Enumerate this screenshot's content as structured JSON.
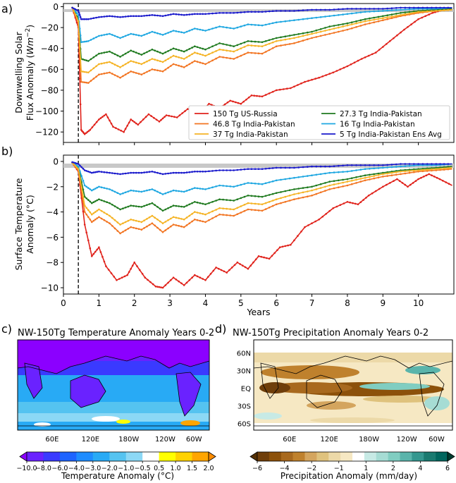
{
  "chart_data": [
    {
      "panel_label": "a)",
      "type": "line",
      "ylabel_line1": "Downwelling Solar",
      "ylabel_line2_prefix": "Flux Anomaly (",
      "ylabel_line2_unit": "Wm",
      "ylabel_line2_exp": "−2",
      "ylabel_line2_suffix": ")",
      "xlim": [
        0,
        11
      ],
      "ylim": [
        -130,
        3
      ],
      "yticks": [
        0,
        -20,
        -40,
        -60,
        -80,
        -100,
        -120
      ],
      "ytick_labels": [
        "0",
        "−20",
        "−40",
        "−60",
        "−80",
        "−100",
        "−120"
      ],
      "vline_x": 0.42,
      "legend_loc": "lower-right",
      "series": [
        {
          "name": "150 Tg US-Russia",
          "color": "#e0221b",
          "x": [
            0.25,
            0.42,
            0.5,
            0.6,
            0.75,
            1.0,
            1.2,
            1.4,
            1.7,
            1.9,
            2.1,
            2.4,
            2.7,
            2.9,
            3.2,
            3.5,
            3.8,
            4.1,
            4.4,
            4.7,
            5.0,
            5.3,
            5.6,
            6.0,
            6.4,
            6.8,
            7.2,
            7.6,
            8.0,
            8.4,
            8.8,
            9.2,
            9.6,
            10.0,
            10.4,
            10.7,
            10.95
          ],
          "y": [
            -1,
            -20,
            -118,
            -122,
            -118,
            -108,
            -103,
            -115,
            -120,
            -108,
            -113,
            -103,
            -110,
            -104,
            -106,
            -98,
            -103,
            -93,
            -97,
            -90,
            -93,
            -85,
            -86,
            -80,
            -78,
            -72,
            -68,
            -63,
            -57,
            -50,
            -44,
            -33,
            -22,
            -12,
            -6,
            -3,
            -2
          ]
        },
        {
          "name": "27.3 Tg India-Pakistan",
          "color": "#1f7a1f",
          "x": [
            0.25,
            0.42,
            0.5,
            0.7,
            1.0,
            1.3,
            1.6,
            1.9,
            2.2,
            2.5,
            2.8,
            3.1,
            3.4,
            3.7,
            4.0,
            4.4,
            4.8,
            5.2,
            5.6,
            6.0,
            6.5,
            7.0,
            7.5,
            8.0,
            8.5,
            9.0,
            9.5,
            10.0,
            10.5,
            10.95
          ],
          "y": [
            -1,
            -12,
            -50,
            -52,
            -45,
            -43,
            -48,
            -42,
            -46,
            -41,
            -45,
            -40,
            -43,
            -38,
            -41,
            -35,
            -38,
            -33,
            -34,
            -30,
            -27,
            -24,
            -19,
            -16,
            -12,
            -9,
            -6,
            -4,
            -3,
            -2
          ]
        },
        {
          "name": "46.8 Tg India-Pakistan",
          "color": "#f27421",
          "x": [
            0.25,
            0.42,
            0.5,
            0.7,
            1.0,
            1.3,
            1.6,
            1.9,
            2.2,
            2.5,
            2.8,
            3.1,
            3.4,
            3.7,
            4.0,
            4.4,
            4.8,
            5.2,
            5.6,
            6.0,
            6.5,
            7.0,
            7.5,
            8.0,
            8.5,
            9.0,
            9.5,
            10.0,
            10.5,
            10.95
          ],
          "y": [
            -1,
            -15,
            -72,
            -73,
            -65,
            -63,
            -68,
            -62,
            -65,
            -60,
            -62,
            -55,
            -58,
            -52,
            -55,
            -48,
            -50,
            -44,
            -45,
            -38,
            -35,
            -30,
            -26,
            -22,
            -17,
            -13,
            -9,
            -6,
            -4,
            -3
          ]
        },
        {
          "name": "16 Tg India-Pakistan",
          "color": "#1ea7e1",
          "x": [
            0.25,
            0.42,
            0.5,
            0.7,
            1.0,
            1.3,
            1.6,
            1.9,
            2.2,
            2.5,
            2.8,
            3.1,
            3.4,
            3.7,
            4.0,
            4.4,
            4.8,
            5.2,
            5.6,
            6.0,
            6.5,
            7.0,
            7.5,
            8.0,
            8.5,
            9.0,
            9.5,
            10.0,
            10.5,
            10.95
          ],
          "y": [
            -1,
            -8,
            -34,
            -33,
            -28,
            -26,
            -30,
            -26,
            -28,
            -24,
            -27,
            -23,
            -25,
            -21,
            -23,
            -19,
            -21,
            -17,
            -18,
            -15,
            -13,
            -11,
            -9,
            -7,
            -5,
            -4,
            -3,
            -2,
            -2,
            -1
          ]
        },
        {
          "name": "37 Tg India-Pakistan",
          "color": "#f5b324",
          "x": [
            0.25,
            0.42,
            0.5,
            0.7,
            1.0,
            1.3,
            1.6,
            1.9,
            2.2,
            2.5,
            2.8,
            3.1,
            3.4,
            3.7,
            4.0,
            4.4,
            4.8,
            5.2,
            5.6,
            6.0,
            6.5,
            7.0,
            7.5,
            8.0,
            8.5,
            9.0,
            9.5,
            10.0,
            10.5,
            10.95
          ],
          "y": [
            -1,
            -14,
            -62,
            -63,
            -55,
            -53,
            -58,
            -52,
            -55,
            -50,
            -53,
            -47,
            -50,
            -44,
            -47,
            -41,
            -43,
            -37,
            -38,
            -33,
            -30,
            -26,
            -22,
            -18,
            -14,
            -11,
            -8,
            -5,
            -4,
            -3
          ]
        },
        {
          "name": "5 Tg India-Pakistan Ens Avg",
          "color": "#1a1acc",
          "x": [
            0.25,
            0.42,
            0.5,
            0.7,
            1.0,
            1.3,
            1.6,
            1.9,
            2.2,
            2.5,
            2.8,
            3.1,
            3.4,
            3.7,
            4.0,
            4.4,
            4.8,
            5.2,
            5.6,
            6.0,
            6.5,
            7.0,
            7.5,
            8.0,
            8.5,
            9.0,
            9.5,
            10.0,
            10.5,
            10.95
          ],
          "y": [
            -1,
            -4,
            -12,
            -12,
            -10,
            -9,
            -10,
            -9,
            -9,
            -8,
            -9,
            -7,
            -8,
            -7,
            -7,
            -6,
            -6,
            -5,
            -5,
            -4,
            -4,
            -3,
            -3,
            -2,
            -2,
            -2,
            -1,
            -1,
            -1,
            -1
          ]
        }
      ]
    },
    {
      "panel_label": "b)",
      "type": "line",
      "ylabel_line1": "Surface Temperature",
      "ylabel_line2": "Anomaly (°C)",
      "xlabel": "Years",
      "xlim": [
        0,
        11
      ],
      "ylim": [
        -10.5,
        0.5
      ],
      "xticks": [
        0,
        1,
        2,
        3,
        4,
        5,
        6,
        7,
        8,
        9,
        10
      ],
      "xtick_labels": [
        "0",
        "1",
        "2",
        "3",
        "4",
        "5",
        "6",
        "7",
        "8",
        "9",
        "10"
      ],
      "yticks": [
        0,
        -2,
        -4,
        -6,
        -8,
        -10
      ],
      "ytick_labels": [
        "0",
        "−2",
        "−4",
        "−6",
        "−8",
        "−10"
      ],
      "vline_x": 0.42,
      "series": [
        {
          "name": "150 Tg US-Russia",
          "color": "#e0221b",
          "x": [
            0.25,
            0.42,
            0.6,
            0.8,
            1.0,
            1.2,
            1.5,
            1.8,
            2.0,
            2.3,
            2.6,
            2.8,
            3.1,
            3.4,
            3.7,
            4.0,
            4.3,
            4.6,
            4.9,
            5.2,
            5.5,
            5.8,
            6.1,
            6.4,
            6.8,
            7.2,
            7.6,
            8.0,
            8.3,
            8.6,
            9.0,
            9.4,
            9.7,
            10.0,
            10.3,
            10.6,
            10.95
          ],
          "y": [
            -0.1,
            -0.8,
            -5.0,
            -7.5,
            -6.8,
            -8.3,
            -9.4,
            -9.0,
            -8.0,
            -9.2,
            -9.9,
            -10.0,
            -9.2,
            -9.8,
            -9.0,
            -9.4,
            -8.4,
            -8.8,
            -8.0,
            -8.5,
            -7.5,
            -7.7,
            -6.8,
            -6.6,
            -5.2,
            -4.6,
            -3.7,
            -3.2,
            -3.4,
            -2.7,
            -2.0,
            -1.4,
            -2.0,
            -1.4,
            -1.0,
            -1.4,
            -1.9
          ]
        },
        {
          "name": "27.3 Tg India-Pakistan",
          "color": "#1f7a1f",
          "x": [
            0.25,
            0.42,
            0.6,
            0.8,
            1.0,
            1.3,
            1.6,
            1.9,
            2.2,
            2.5,
            2.8,
            3.1,
            3.4,
            3.7,
            4.0,
            4.4,
            4.8,
            5.2,
            5.6,
            6.0,
            6.5,
            7.0,
            7.5,
            8.0,
            8.5,
            9.0,
            9.5,
            10.0,
            10.5,
            10.95
          ],
          "y": [
            -0.1,
            -0.5,
            -2.8,
            -3.3,
            -3.0,
            -3.3,
            -3.8,
            -3.5,
            -3.6,
            -3.3,
            -3.9,
            -3.5,
            -3.6,
            -3.2,
            -3.4,
            -3.0,
            -3.1,
            -2.7,
            -2.8,
            -2.5,
            -2.2,
            -2.0,
            -1.6,
            -1.4,
            -1.1,
            -0.9,
            -0.7,
            -0.6,
            -0.5,
            -0.4
          ]
        },
        {
          "name": "46.8 Tg India-Pakistan",
          "color": "#f27421",
          "x": [
            0.25,
            0.42,
            0.6,
            0.8,
            1.0,
            1.3,
            1.6,
            1.9,
            2.2,
            2.5,
            2.8,
            3.1,
            3.4,
            3.7,
            4.0,
            4.4,
            4.8,
            5.2,
            5.6,
            6.0,
            6.5,
            7.0,
            7.5,
            8.0,
            8.5,
            9.0,
            9.5,
            10.0,
            10.5,
            10.95
          ],
          "y": [
            -0.1,
            -0.7,
            -4.0,
            -4.8,
            -4.4,
            -4.9,
            -5.7,
            -5.2,
            -5.4,
            -4.9,
            -5.6,
            -5.0,
            -5.2,
            -4.6,
            -4.8,
            -4.2,
            -4.3,
            -3.8,
            -3.9,
            -3.4,
            -3.0,
            -2.7,
            -2.2,
            -1.9,
            -1.5,
            -1.2,
            -1.0,
            -0.8,
            -0.7,
            -0.6
          ]
        },
        {
          "name": "16 Tg India-Pakistan",
          "color": "#1ea7e1",
          "x": [
            0.25,
            0.42,
            0.6,
            0.8,
            1.0,
            1.3,
            1.6,
            1.9,
            2.2,
            2.5,
            2.8,
            3.1,
            3.4,
            3.7,
            4.0,
            4.4,
            4.8,
            5.2,
            5.6,
            6.0,
            6.5,
            7.0,
            7.5,
            8.0,
            8.5,
            9.0,
            9.5,
            10.0,
            10.5,
            10.95
          ],
          "y": [
            -0.1,
            -0.4,
            -1.9,
            -2.3,
            -2.0,
            -2.2,
            -2.6,
            -2.3,
            -2.4,
            -2.2,
            -2.6,
            -2.3,
            -2.4,
            -2.1,
            -2.2,
            -1.9,
            -2.0,
            -1.7,
            -1.8,
            -1.5,
            -1.3,
            -1.1,
            -0.9,
            -0.8,
            -0.6,
            -0.5,
            -0.4,
            -0.3,
            -0.3,
            -0.2
          ]
        },
        {
          "name": "37 Tg India-Pakistan",
          "color": "#f5b324",
          "x": [
            0.25,
            0.42,
            0.6,
            0.8,
            1.0,
            1.3,
            1.6,
            1.9,
            2.2,
            2.5,
            2.8,
            3.1,
            3.4,
            3.7,
            4.0,
            4.4,
            4.8,
            5.2,
            5.6,
            6.0,
            6.5,
            7.0,
            7.5,
            8.0,
            8.5,
            9.0,
            9.5,
            10.0,
            10.5,
            10.95
          ],
          "y": [
            -0.1,
            -0.6,
            -3.5,
            -4.2,
            -3.8,
            -4.3,
            -5.0,
            -4.6,
            -4.8,
            -4.3,
            -4.9,
            -4.4,
            -4.6,
            -4.0,
            -4.2,
            -3.7,
            -3.8,
            -3.3,
            -3.4,
            -3.0,
            -2.6,
            -2.3,
            -1.9,
            -1.6,
            -1.3,
            -1.0,
            -0.8,
            -0.7,
            -0.6,
            -0.5
          ]
        },
        {
          "name": "5 Tg India-Pakistan Ens Avg",
          "color": "#1a1acc",
          "x": [
            0.25,
            0.42,
            0.6,
            0.8,
            1.0,
            1.3,
            1.6,
            1.9,
            2.2,
            2.5,
            2.8,
            3.1,
            3.4,
            3.7,
            4.0,
            4.4,
            4.8,
            5.2,
            5.6,
            6.0,
            6.5,
            7.0,
            7.5,
            8.0,
            8.5,
            9.0,
            9.5,
            10.0,
            10.5,
            10.95
          ],
          "y": [
            -0.05,
            -0.2,
            -0.7,
            -0.9,
            -0.8,
            -0.9,
            -1.0,
            -0.9,
            -0.9,
            -0.8,
            -1.0,
            -0.9,
            -0.9,
            -0.8,
            -0.8,
            -0.7,
            -0.7,
            -0.6,
            -0.6,
            -0.5,
            -0.5,
            -0.4,
            -0.4,
            -0.3,
            -0.3,
            -0.3,
            -0.2,
            -0.2,
            -0.2,
            -0.2
          ]
        }
      ]
    },
    {
      "panel_label": "c)",
      "type": "heatmap",
      "title": "NW-150Tg Temperature Anomaly Years 0-2",
      "lat_labels": [
        "60N",
        "30N",
        "EQ",
        "30S",
        "60S"
      ],
      "lon_labels": [
        "60E",
        "120E",
        "180W",
        "120W",
        "60W"
      ],
      "colorbar_label": "Temperature Anomaly (°C)",
      "colorbar_ticks": [
        "−10.0",
        "−8.0",
        "−6.0",
        "−4.0",
        "−3.0",
        "−2.0",
        "−1.0",
        "−0.5",
        "0.5",
        "1.0",
        "1.5",
        "2.0"
      ],
      "colorbar_colors": [
        "#8b00ff",
        "#6a22ff",
        "#3a3aff",
        "#1e64ff",
        "#1e8cff",
        "#28aaf5",
        "#55c3f0",
        "#8cd8f5",
        "#ffffff",
        "#ffff00",
        "#ffd200",
        "#ffa500",
        "#ff8c00"
      ]
    },
    {
      "panel_label": "d)",
      "type": "heatmap",
      "title": "NW-150Tg Precipitation Anomaly Years 0-2",
      "lat_labels": [
        "60N",
        "30N",
        "EQ",
        "30S",
        "60S"
      ],
      "lon_labels": [
        "60E",
        "120E",
        "180W",
        "120W",
        "60W"
      ],
      "colorbar_label": "Precipitation Anomaly (mm/day)",
      "colorbar_ticks": [
        "−6",
        "−4",
        "−2",
        "−1",
        "1",
        "2",
        "4",
        "6"
      ],
      "colorbar_colors": [
        "#543005",
        "#6f3e0a",
        "#8c510a",
        "#a8691e",
        "#bf812d",
        "#d4a55e",
        "#dfc27d",
        "#ecd9a8",
        "#f6e8c3",
        "#ffffff",
        "#c7eae5",
        "#a6dcd4",
        "#80cdc1",
        "#5ab4ab",
        "#35978f",
        "#1a7a70",
        "#01665e",
        "#003c30"
      ]
    }
  ]
}
